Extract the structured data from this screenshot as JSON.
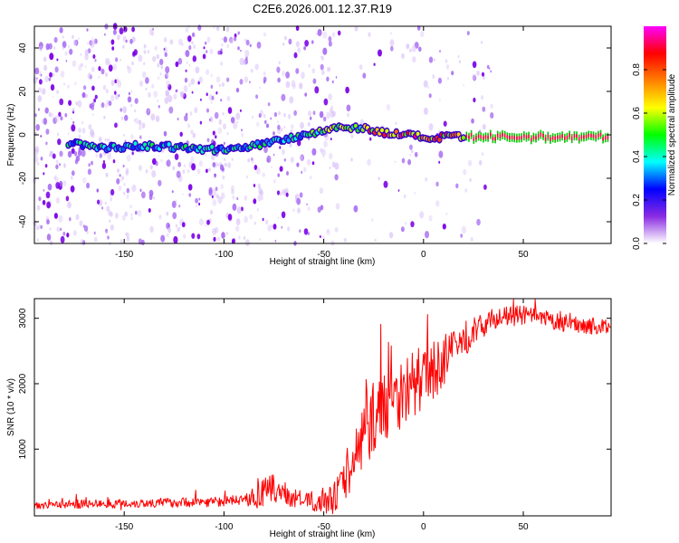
{
  "title": "C2E6.2026.001.12.37.R19",
  "chart_data": [
    {
      "type": "heatmap",
      "xlabel": "Height of straight line (km)",
      "ylabel": "Frequency (Hz)",
      "xlim": [
        -195,
        94
      ],
      "ylim": [
        -50,
        50
      ],
      "xticks": [
        -150,
        -100,
        -50,
        0,
        50
      ],
      "yticks": [
        -40,
        -20,
        0,
        20,
        40
      ],
      "colorbar": {
        "label": "Normalized spectral amplitude",
        "range": [
          0,
          1
        ],
        "ticks": [
          0,
          0.2,
          0.4,
          0.6,
          0.8
        ],
        "tick_labels": [
          "0.0",
          "0.2",
          "0.4",
          "0.6",
          "0.8"
        ],
        "colormap": [
          "#ffffff",
          "#8a2be2",
          "#0000ff",
          "#00ffff",
          "#00ff00",
          "#ffff00",
          "#ff8000",
          "#ff0000",
          "#ff00ff"
        ]
      },
      "ridge": [
        {
          "x": -175,
          "y": -4
        },
        {
          "x": -160,
          "y": -6
        },
        {
          "x": -140,
          "y": -5
        },
        {
          "x": -120,
          "y": -6
        },
        {
          "x": -100,
          "y": -7
        },
        {
          "x": -90,
          "y": -6
        },
        {
          "x": -80,
          "y": -4
        },
        {
          "x": -70,
          "y": -2
        },
        {
          "x": -60,
          "y": 0
        },
        {
          "x": -50,
          "y": 2
        },
        {
          "x": -40,
          "y": 4
        },
        {
          "x": -30,
          "y": 3
        },
        {
          "x": -20,
          "y": 1
        },
        {
          "x": -10,
          "y": 0
        },
        {
          "x": 0,
          "y": -1
        },
        {
          "x": 5,
          "y": -2
        },
        {
          "x": 10,
          "y": -1
        },
        {
          "x": 20,
          "y": -1
        },
        {
          "x": 94,
          "y": -1
        }
      ]
    },
    {
      "type": "line",
      "xlabel": "Height of straight line (km)",
      "ylabel": "SNR (10 * v/v)",
      "xlim": [
        -195,
        94
      ],
      "ylim": [
        -20,
        3300
      ],
      "xticks": [
        -150,
        -100,
        -50,
        0,
        50
      ],
      "yticks": [
        1000,
        2000,
        3000
      ],
      "series_color": "#ff0000",
      "envelope": [
        {
          "x": -195,
          "y": 150
        },
        {
          "x": -150,
          "y": 170
        },
        {
          "x": -100,
          "y": 200
        },
        {
          "x": -85,
          "y": 250
        },
        {
          "x": -75,
          "y": 400
        },
        {
          "x": -65,
          "y": 250
        },
        {
          "x": -55,
          "y": 200
        },
        {
          "x": -45,
          "y": 250
        },
        {
          "x": -38,
          "y": 600
        },
        {
          "x": -33,
          "y": 1000
        },
        {
          "x": -25,
          "y": 1500
        },
        {
          "x": -15,
          "y": 1800
        },
        {
          "x": -5,
          "y": 2000
        },
        {
          "x": 5,
          "y": 2200
        },
        {
          "x": 15,
          "y": 2500
        },
        {
          "x": 25,
          "y": 2800
        },
        {
          "x": 35,
          "y": 3000
        },
        {
          "x": 50,
          "y": 3050
        },
        {
          "x": 65,
          "y": 2950
        },
        {
          "x": 80,
          "y": 2900
        },
        {
          "x": 94,
          "y": 2850
        }
      ],
      "noise_amplitude": [
        {
          "x": -195,
          "y": 80
        },
        {
          "x": -90,
          "y": 100
        },
        {
          "x": -80,
          "y": 300
        },
        {
          "x": -60,
          "y": 150
        },
        {
          "x": -40,
          "y": 350
        },
        {
          "x": -30,
          "y": 700
        },
        {
          "x": -10,
          "y": 700
        },
        {
          "x": 10,
          "y": 500
        },
        {
          "x": 30,
          "y": 200
        },
        {
          "x": 94,
          "y": 150
        }
      ]
    }
  ]
}
